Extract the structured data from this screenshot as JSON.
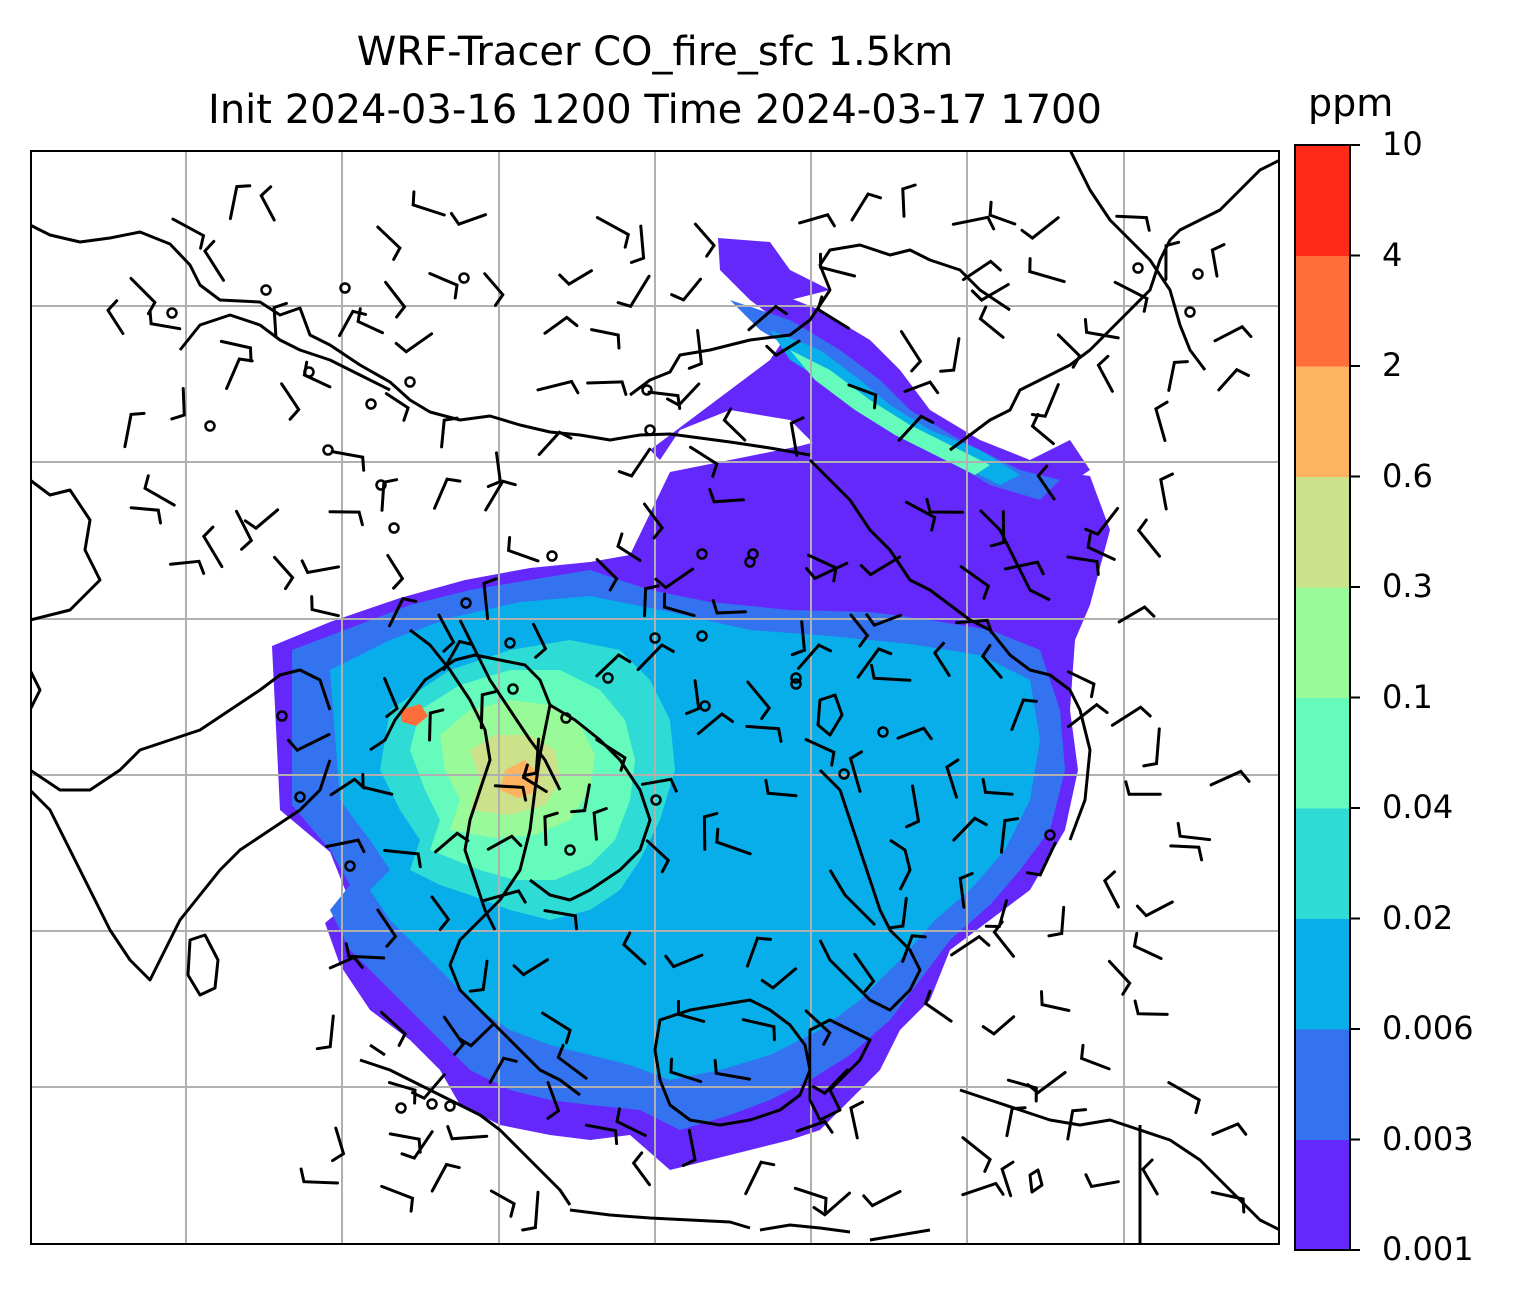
{
  "header": {
    "title_line1": "WRF-Tracer CO_fire_sfc 1.5km",
    "title_line2": "Init 2024-03-16 1200 Time 2024-03-17 1700"
  },
  "colorbar": {
    "unit": "ppm",
    "levels": [
      "0.001",
      "0.003",
      "0.006",
      "0.02",
      "0.04",
      "0.1",
      "0.3",
      "0.6",
      "2",
      "4",
      "10"
    ],
    "colors": [
      "#6528fa",
      "#3473f0",
      "#08aeea",
      "#2edcd5",
      "#64fbbc",
      "#98fa98",
      "#cde08a",
      "#feb360",
      "#ff6e3a",
      "#ff2a17"
    ]
  },
  "map": {
    "background_color": "#ffffff",
    "gridline_color": "#b0b0b0",
    "coastline_color": "#000000",
    "wind_barb_color": "#000000",
    "gridlines_shown": true
  }
}
